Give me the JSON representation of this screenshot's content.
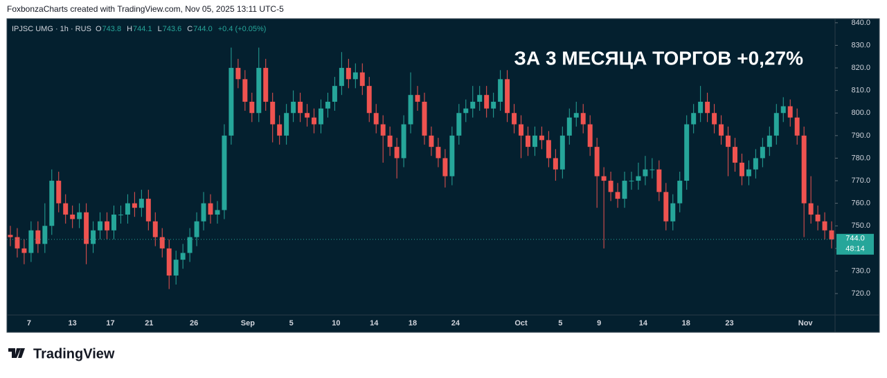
{
  "chart_data": {
    "type": "candlestick",
    "watermark": "FoxbonzaCharts created with TradingView.com, Nov 05, 2025 13:11 UTC-5",
    "symbol": "IPJSC UMG · 1h · RUS",
    "ohlc": [
      {
        "key": "O",
        "value": "743.8"
      },
      {
        "key": "H",
        "value": "744.1"
      },
      {
        "key": "L",
        "value": "743.6"
      },
      {
        "key": "C",
        "value": "744.0"
      }
    ],
    "change": "+0.4 (+0.05%)",
    "title": "ЗА 3 МЕСЯЦА ТОРГОВ +0,27%",
    "brand": "TradingView",
    "up_color": "#26a69a",
    "down_color": "#ef5350",
    "last_price": {
      "value": 744,
      "label": "744.0"
    },
    "countdown": "48:14",
    "ylim": [
      710.5,
      841.8
    ],
    "yticks": [
      {
        "value": 720,
        "label": "720.0"
      },
      {
        "value": 730,
        "label": "730.0"
      },
      {
        "value": 740,
        "label": "740.0"
      },
      {
        "value": 750,
        "label": "750.0"
      },
      {
        "value": 760,
        "label": "760.0"
      },
      {
        "value": 770,
        "label": "770.0"
      },
      {
        "value": 780,
        "label": "780.0"
      },
      {
        "value": 790,
        "label": "790.0"
      },
      {
        "value": 800,
        "label": "800.0"
      },
      {
        "value": 810,
        "label": "810.0"
      },
      {
        "value": 820,
        "label": "820.0"
      },
      {
        "value": 830,
        "label": "830.0"
      },
      {
        "value": 840,
        "label": "840.0"
      }
    ],
    "xlim": [
      -0.5,
      119.5
    ],
    "xticks": [
      {
        "value": 2.7,
        "label": "7"
      },
      {
        "value": 9.0,
        "label": "13"
      },
      {
        "value": 14.5,
        "label": "17"
      },
      {
        "value": 20.1,
        "label": "21"
      },
      {
        "value": 26.6,
        "label": "26"
      },
      {
        "value": 34.4,
        "label": "Sep"
      },
      {
        "value": 40.7,
        "label": "5"
      },
      {
        "value": 47.2,
        "label": "10"
      },
      {
        "value": 52.7,
        "label": "14"
      },
      {
        "value": 58.3,
        "label": "18"
      },
      {
        "value": 64.5,
        "label": "24"
      },
      {
        "value": 74.0,
        "label": "Oct"
      },
      {
        "value": 79.7,
        "label": "5"
      },
      {
        "value": 85.3,
        "label": "9"
      },
      {
        "value": 91.7,
        "label": "14"
      },
      {
        "value": 97.9,
        "label": "18"
      },
      {
        "value": 104.2,
        "label": "23"
      },
      {
        "value": 115.2,
        "label": "Nov"
      }
    ],
    "candles": [
      [
        746,
        750,
        741,
        745
      ],
      [
        745,
        749,
        736,
        740
      ],
      [
        740,
        744,
        733,
        738
      ],
      [
        738,
        752,
        734,
        748
      ],
      [
        748,
        752,
        738,
        742
      ],
      [
        742,
        760,
        738,
        750
      ],
      [
        750,
        775,
        746,
        770
      ],
      [
        770,
        774,
        756,
        760
      ],
      [
        760,
        764,
        751,
        755
      ],
      [
        755,
        759,
        749,
        753
      ],
      [
        753,
        760,
        749,
        756
      ],
      [
        756,
        760,
        733,
        742
      ],
      [
        742,
        752,
        738,
        748
      ],
      [
        748,
        756,
        744,
        752
      ],
      [
        752,
        756,
        744,
        748
      ],
      [
        748,
        759,
        744,
        755
      ],
      [
        755,
        759,
        751,
        755
      ],
      [
        755,
        764,
        751,
        760
      ],
      [
        760,
        765,
        754,
        758
      ],
      [
        758,
        766,
        754,
        762
      ],
      [
        762,
        766,
        748,
        752
      ],
      [
        752,
        756,
        741,
        745
      ],
      [
        745,
        749,
        736,
        740
      ],
      [
        740,
        744,
        722,
        728
      ],
      [
        728,
        739,
        724,
        735
      ],
      [
        735,
        742,
        731,
        738
      ],
      [
        738,
        749,
        734,
        745
      ],
      [
        745,
        756,
        741,
        752
      ],
      [
        752,
        765,
        748,
        760
      ],
      [
        760,
        764,
        751,
        755
      ],
      [
        755,
        761,
        751,
        757
      ],
      [
        757,
        795,
        753,
        790
      ],
      [
        790,
        829,
        786,
        820
      ],
      [
        820,
        824,
        811,
        815
      ],
      [
        815,
        819,
        801,
        805
      ],
      [
        805,
        809,
        796,
        800
      ],
      [
        800,
        829,
        796,
        820
      ],
      [
        820,
        824,
        801,
        805
      ],
      [
        805,
        809,
        787,
        795
      ],
      [
        795,
        799,
        786,
        790
      ],
      [
        790,
        804,
        786,
        800
      ],
      [
        800,
        810,
        796,
        805
      ],
      [
        805,
        809,
        796,
        800
      ],
      [
        800,
        804,
        794,
        798
      ],
      [
        798,
        802,
        791,
        795
      ],
      [
        795,
        806,
        791,
        802
      ],
      [
        802,
        809,
        798,
        805
      ],
      [
        805,
        816,
        801,
        812
      ],
      [
        812,
        827,
        808,
        820
      ],
      [
        820,
        824,
        811,
        815
      ],
      [
        815,
        822,
        811,
        818
      ],
      [
        818,
        822,
        808,
        812
      ],
      [
        812,
        816,
        796,
        800
      ],
      [
        800,
        804,
        791,
        795
      ],
      [
        795,
        799,
        778,
        790
      ],
      [
        790,
        794,
        781,
        785
      ],
      [
        785,
        789,
        771,
        780
      ],
      [
        780,
        799,
        776,
        795
      ],
      [
        795,
        818,
        791,
        808
      ],
      [
        808,
        812,
        801,
        805
      ],
      [
        805,
        809,
        786,
        790
      ],
      [
        790,
        794,
        781,
        785
      ],
      [
        785,
        789,
        776,
        780
      ],
      [
        780,
        784,
        767,
        772
      ],
      [
        772,
        794,
        768,
        790
      ],
      [
        790,
        804,
        786,
        800
      ],
      [
        800,
        806,
        796,
        802
      ],
      [
        802,
        812,
        798,
        805
      ],
      [
        805,
        812,
        801,
        808
      ],
      [
        808,
        812,
        798,
        802
      ],
      [
        802,
        809,
        798,
        805
      ],
      [
        805,
        819,
        801,
        815
      ],
      [
        815,
        819,
        796,
        800
      ],
      [
        800,
        804,
        791,
        795
      ],
      [
        795,
        799,
        780,
        790
      ],
      [
        790,
        794,
        781,
        785
      ],
      [
        785,
        794,
        781,
        790
      ],
      [
        790,
        794,
        784,
        788
      ],
      [
        788,
        792,
        776,
        780
      ],
      [
        780,
        784,
        770,
        775
      ],
      [
        775,
        794,
        771,
        790
      ],
      [
        790,
        802,
        786,
        798
      ],
      [
        798,
        805,
        794,
        800
      ],
      [
        800,
        804,
        791,
        795
      ],
      [
        795,
        799,
        781,
        785
      ],
      [
        785,
        789,
        758,
        772
      ],
      [
        772,
        776,
        740,
        770
      ],
      [
        770,
        774,
        761,
        765
      ],
      [
        765,
        769,
        758,
        762
      ],
      [
        762,
        774,
        758,
        770
      ],
      [
        770,
        774,
        766,
        770
      ],
      [
        770,
        778,
        766,
        772
      ],
      [
        772,
        781,
        768,
        775
      ],
      [
        775,
        780,
        771,
        775
      ],
      [
        775,
        779,
        761,
        765
      ],
      [
        765,
        769,
        748,
        752
      ],
      [
        752,
        764,
        748,
        760
      ],
      [
        760,
        774,
        756,
        770
      ],
      [
        770,
        799,
        766,
        795
      ],
      [
        795,
        804,
        791,
        800
      ],
      [
        800,
        812,
        796,
        805
      ],
      [
        805,
        809,
        796,
        800
      ],
      [
        800,
        804,
        791,
        795
      ],
      [
        795,
        799,
        786,
        790
      ],
      [
        790,
        794,
        772,
        785
      ],
      [
        785,
        789,
        774,
        778
      ],
      [
        778,
        782,
        768,
        772
      ],
      [
        772,
        779,
        768,
        775
      ],
      [
        775,
        784,
        771,
        780
      ],
      [
        780,
        789,
        776,
        785
      ],
      [
        785,
        794,
        781,
        790
      ],
      [
        790,
        804,
        786,
        800
      ],
      [
        800,
        807,
        796,
        803
      ],
      [
        803,
        806,
        794,
        798
      ],
      [
        798,
        802,
        786,
        790
      ],
      [
        790,
        794,
        745,
        760
      ],
      [
        760,
        772,
        751,
        755
      ],
      [
        755,
        759,
        748,
        752
      ],
      [
        752,
        756,
        744,
        748
      ],
      [
        748,
        752,
        740,
        744
      ]
    ]
  }
}
